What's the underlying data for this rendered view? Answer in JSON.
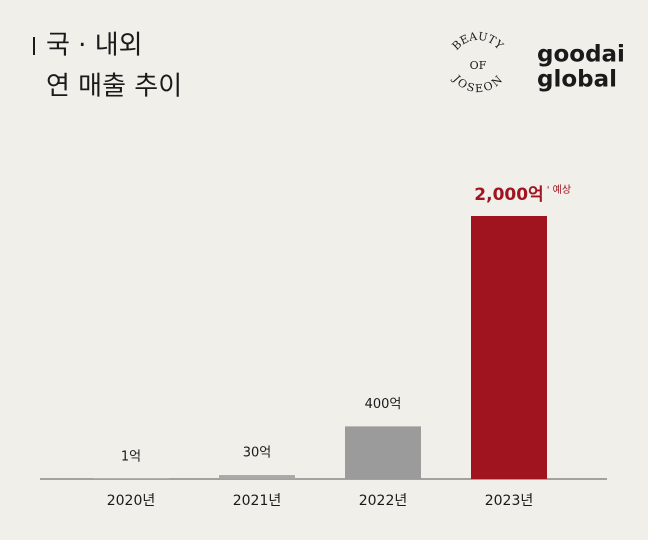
{
  "chart_data": {
    "type": "bar",
    "title": [
      "국 · 내외",
      "연 매출 추이"
    ],
    "categories": [
      "2020년",
      "2021년",
      "2022년",
      "2023년"
    ],
    "values": [
      1,
      30,
      400,
      2000
    ],
    "value_labels": [
      "1억",
      "30억",
      "400억",
      "2,000억"
    ],
    "colors": [
      "#c9c8c5",
      "#a8a8a7",
      "#9b9b9b",
      "#a0141f"
    ],
    "annotation": "' 예상"
  },
  "logos": {
    "brand": [
      "BEAUTY",
      "OF",
      "JOSEON"
    ],
    "company": [
      "goodai",
      "global"
    ]
  }
}
